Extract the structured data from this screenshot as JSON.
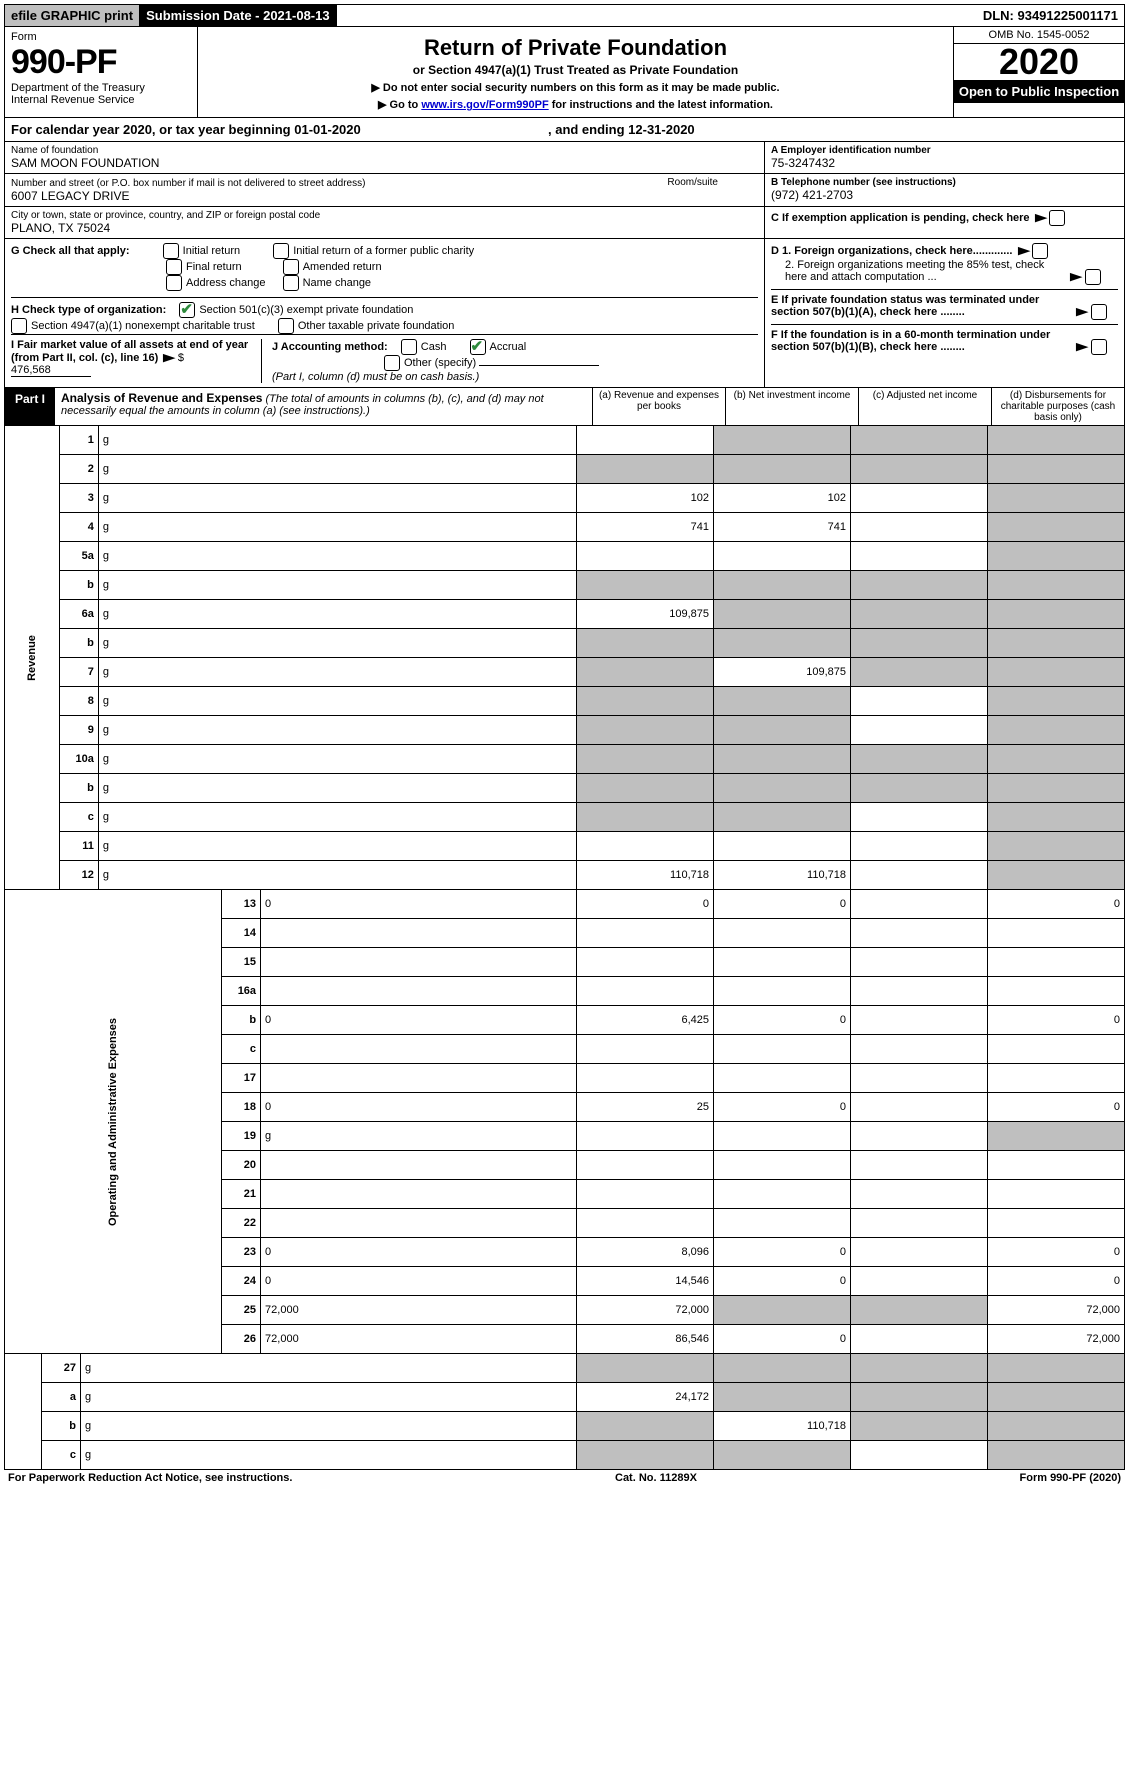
{
  "topbar": {
    "efile": "efile GRAPHIC print",
    "submission": "Submission Date - 2021-08-13",
    "dln": "DLN: 93491225001171"
  },
  "header": {
    "form_word": "Form",
    "form_num": "990-PF",
    "dept1": "Department of the Treasury",
    "dept2": "Internal Revenue Service",
    "title": "Return of Private Foundation",
    "subtitle": "or Section 4947(a)(1) Trust Treated as Private Foundation",
    "note1": "▶ Do not enter social security numbers on this form as it may be made public.",
    "note2_pre": "▶ Go to ",
    "note2_link": "www.irs.gov/Form990PF",
    "note2_post": " for instructions and the latest information.",
    "omb": "OMB No. 1545-0052",
    "year": "2020",
    "open": "Open to Public Inspection"
  },
  "calendar": {
    "text_pre": "For calendar year 2020, or tax year beginning ",
    "begin": "01-01-2020",
    "mid": " , and ending ",
    "end": "12-31-2020"
  },
  "info": {
    "name_label": "Name of foundation",
    "name": "SAM MOON FOUNDATION",
    "addr_label": "Number and street (or P.O. box number if mail is not delivered to street address)",
    "addr": "6007 LEGACY DRIVE",
    "room_label": "Room/suite",
    "city_label": "City or town, state or province, country, and ZIP or foreign postal code",
    "city": "PLANO, TX  75024",
    "ein_label": "A Employer identification number",
    "ein": "75-3247432",
    "tel_label": "B Telephone number (see instructions)",
    "tel": "(972) 421-2703",
    "c_label": "C  If exemption application is pending, check here",
    "d1": "D 1. Foreign organizations, check here.............",
    "d2": "2. Foreign organizations meeting the 85% test, check here and attach computation ...",
    "e": "E  If private foundation status was terminated under section 507(b)(1)(A), check here ........",
    "f": "F  If the foundation is in a 60-month termination under section 507(b)(1)(B), check here ........"
  },
  "g": {
    "label": "G Check all that apply:",
    "opts": [
      "Initial return",
      "Final return",
      "Address change",
      "Initial return of a former public charity",
      "Amended return",
      "Name change"
    ]
  },
  "h": {
    "label": "H Check type of organization:",
    "opt1": "Section 501(c)(3) exempt private foundation",
    "opt2": "Section 4947(a)(1) nonexempt charitable trust",
    "opt3": "Other taxable private foundation"
  },
  "i": {
    "label": "I Fair market value of all assets at end of year (from Part II, col. (c), line 16)",
    "val": "476,568"
  },
  "j": {
    "label": "J Accounting method:",
    "cash": "Cash",
    "accrual": "Accrual",
    "other": "Other (specify)",
    "note": "(Part I, column (d) must be on cash basis.)"
  },
  "part1": {
    "tag": "Part I",
    "title": "Analysis of Revenue and Expenses",
    "note": " (The total of amounts in columns (b), (c), and (d) may not necessarily equal the amounts in column (a) (see instructions).)",
    "cols": {
      "a": "(a) Revenue and expenses per books",
      "b": "(b) Net investment income",
      "c": "(c) Adjusted net income",
      "d": "(d) Disbursements for charitable purposes (cash basis only)"
    }
  },
  "side": {
    "rev": "Revenue",
    "exp": "Operating and Administrative Expenses"
  },
  "rows": [
    {
      "n": "1",
      "d": "g",
      "a": "",
      "b": "g",
      "c": "g"
    },
    {
      "n": "2",
      "d": "g",
      "a": "g",
      "b": "g",
      "c": "g"
    },
    {
      "n": "3",
      "d": "g",
      "a": "102",
      "b": "102",
      "c": ""
    },
    {
      "n": "4",
      "d": "g",
      "a": "741",
      "b": "741",
      "c": ""
    },
    {
      "n": "5a",
      "d": "g",
      "a": "",
      "b": "",
      "c": ""
    },
    {
      "n": "b",
      "d": "g",
      "a": "g",
      "b": "g",
      "c": "g"
    },
    {
      "n": "6a",
      "d": "g",
      "a": "109,875",
      "b": "g",
      "c": "g"
    },
    {
      "n": "b",
      "d": "g",
      "a": "g",
      "b": "g",
      "c": "g"
    },
    {
      "n": "7",
      "d": "g",
      "a": "g",
      "b": "109,875",
      "c": "g"
    },
    {
      "n": "8",
      "d": "g",
      "a": "g",
      "b": "g",
      "c": ""
    },
    {
      "n": "9",
      "d": "g",
      "a": "g",
      "b": "g",
      "c": ""
    },
    {
      "n": "10a",
      "d": "g",
      "a": "g",
      "b": "g",
      "c": "g"
    },
    {
      "n": "b",
      "d": "g",
      "a": "g",
      "b": "g",
      "c": "g"
    },
    {
      "n": "c",
      "d": "g",
      "a": "g",
      "b": "g",
      "c": ""
    },
    {
      "n": "11",
      "d": "g",
      "a": "",
      "b": "",
      "c": ""
    },
    {
      "n": "12",
      "d": "g",
      "a": "110,718",
      "b": "110,718",
      "c": ""
    }
  ],
  "rows2": [
    {
      "n": "13",
      "d": "0",
      "a": "0",
      "b": "0",
      "c": ""
    },
    {
      "n": "14",
      "d": "",
      "a": "",
      "b": "",
      "c": ""
    },
    {
      "n": "15",
      "d": "",
      "a": "",
      "b": "",
      "c": ""
    },
    {
      "n": "16a",
      "d": "",
      "a": "",
      "b": "",
      "c": ""
    },
    {
      "n": "b",
      "d": "0",
      "a": "6,425",
      "b": "0",
      "c": ""
    },
    {
      "n": "c",
      "d": "",
      "a": "",
      "b": "",
      "c": ""
    },
    {
      "n": "17",
      "d": "",
      "a": "",
      "b": "",
      "c": ""
    },
    {
      "n": "18",
      "d": "0",
      "a": "25",
      "b": "0",
      "c": ""
    },
    {
      "n": "19",
      "d": "g",
      "a": "",
      "b": "",
      "c": ""
    },
    {
      "n": "20",
      "d": "",
      "a": "",
      "b": "",
      "c": ""
    },
    {
      "n": "21",
      "d": "",
      "a": "",
      "b": "",
      "c": ""
    },
    {
      "n": "22",
      "d": "",
      "a": "",
      "b": "",
      "c": ""
    },
    {
      "n": "23",
      "d": "0",
      "a": "8,096",
      "b": "0",
      "c": ""
    },
    {
      "n": "24",
      "d": "0",
      "a": "14,546",
      "b": "0",
      "c": ""
    },
    {
      "n": "25",
      "d": "72,000",
      "a": "72,000",
      "b": "g",
      "c": "g"
    },
    {
      "n": "26",
      "d": "72,000",
      "a": "86,546",
      "b": "0",
      "c": ""
    }
  ],
  "rows3": [
    {
      "n": "27",
      "d": "g",
      "a": "g",
      "b": "g",
      "c": "g"
    },
    {
      "n": "a",
      "d": "g",
      "a": "24,172",
      "b": "g",
      "c": "g"
    },
    {
      "n": "b",
      "d": "g",
      "a": "g",
      "b": "110,718",
      "c": "g"
    },
    {
      "n": "c",
      "d": "g",
      "a": "g",
      "b": "g",
      "c": ""
    }
  ],
  "footer": {
    "left": "For Paperwork Reduction Act Notice, see instructions.",
    "mid": "Cat. No. 11289X",
    "right": "Form 990-PF (2020)"
  }
}
